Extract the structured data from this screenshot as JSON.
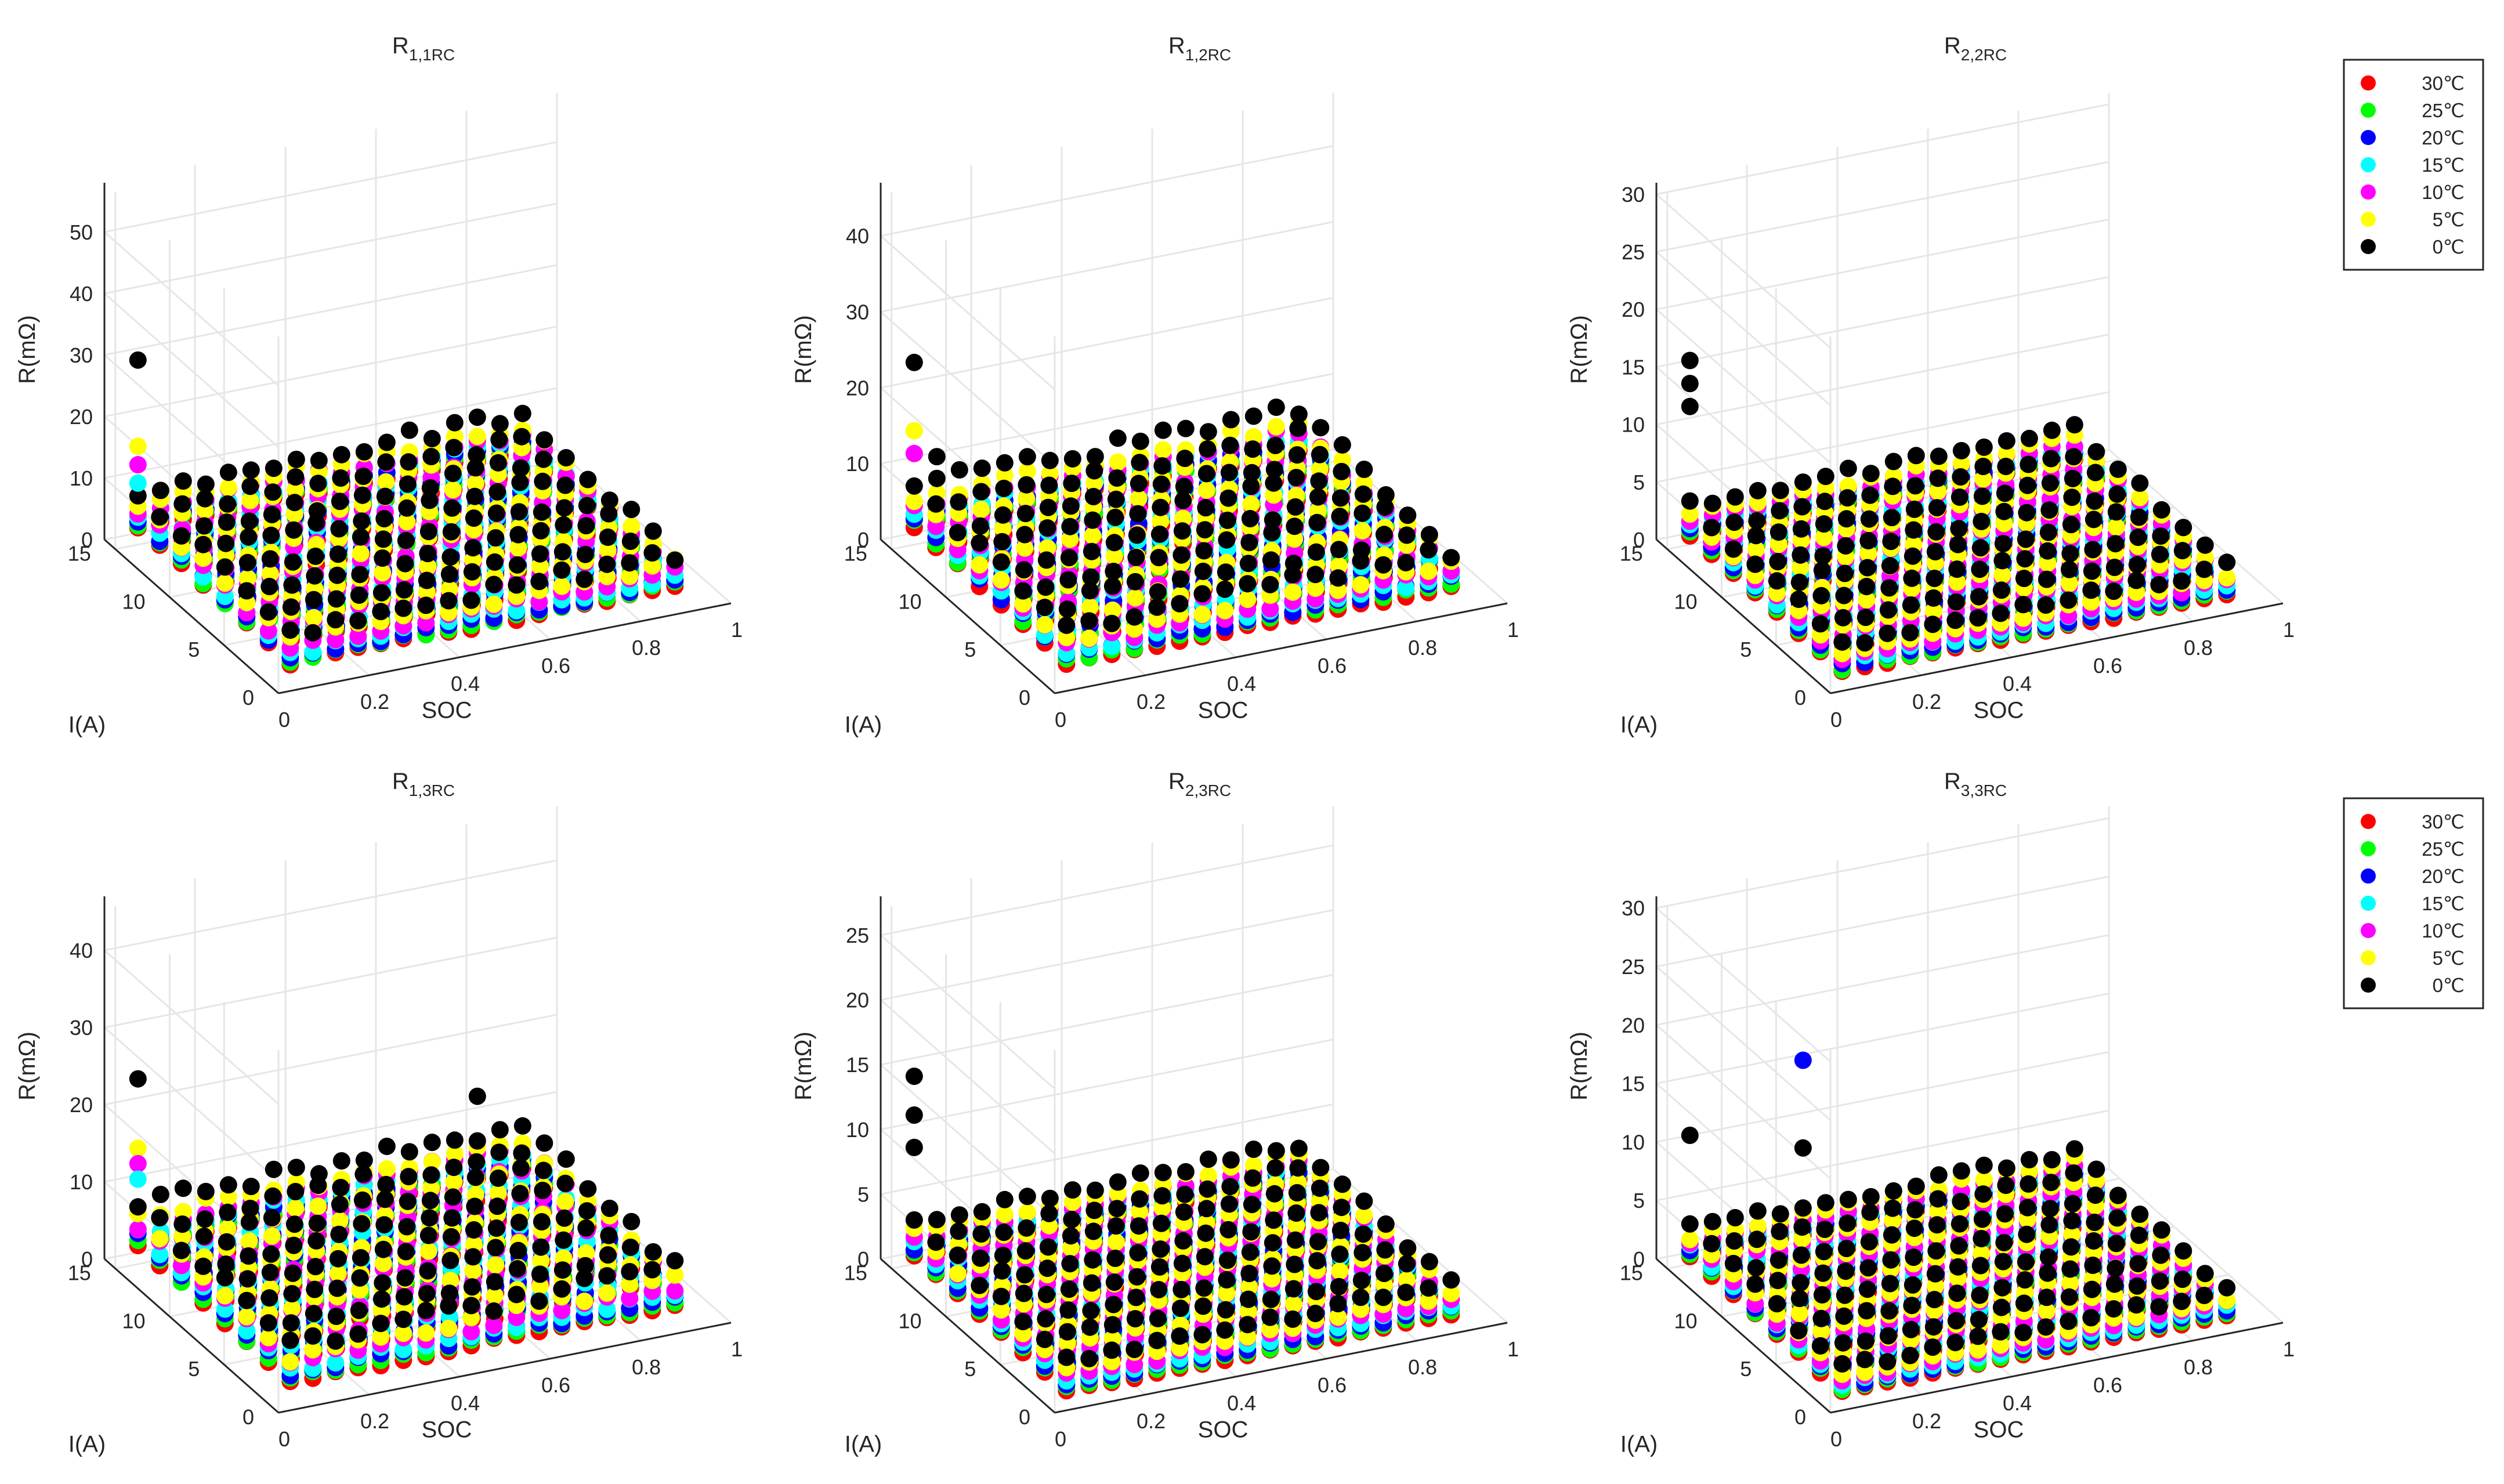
{
  "figure": {
    "temperatures": [
      {
        "label": "30℃",
        "color": "#ff0000",
        "key": "t30"
      },
      {
        "label": "25℃",
        "color": "#00ff00",
        "key": "t25"
      },
      {
        "label": "20℃",
        "color": "#0000ff",
        "key": "t20"
      },
      {
        "label": "15℃",
        "color": "#00ffff",
        "key": "t15"
      },
      {
        "label": "10℃",
        "color": "#ff00ff",
        "key": "t10"
      },
      {
        "label": "5℃",
        "color": "#ffff00",
        "key": "t5"
      },
      {
        "label": "0℃",
        "color": "#000000",
        "key": "t0"
      }
    ]
  },
  "chart_data": [
    {
      "type": "scatter",
      "title_main": "R",
      "title_sub": "1,1RC",
      "xlabel": "SOC",
      "ylabel": "I(A)",
      "zlabel": "R(mΩ)",
      "x_ticks": [
        "0",
        "0.2",
        "0.4",
        "0.6",
        "0.8",
        "1"
      ],
      "y_ticks": [
        "0",
        "5",
        "10",
        "15"
      ],
      "z_ticks": [
        "0",
        "10",
        "20",
        "30",
        "40",
        "50"
      ],
      "zlim": [
        0,
        58
      ],
      "soc": [
        0.05,
        0.1,
        0.15,
        0.2,
        0.25,
        0.3,
        0.35,
        0.4,
        0.45,
        0.5,
        0.55,
        0.6,
        0.65,
        0.7,
        0.75,
        0.8,
        0.85,
        0.9
      ],
      "current": [
        1,
        3,
        5,
        7,
        9,
        11,
        13,
        15
      ],
      "base_resistance": {
        "t30": 2.2,
        "t25": 2.6,
        "t20": 3.0,
        "t15": 3.6,
        "t10": 4.3,
        "t5": 5.2,
        "t0": 6.6
      },
      "outliers": [
        {
          "soc": 0.05,
          "current": 15,
          "value": 30,
          "temp": "0℃"
        },
        {
          "soc": 0.05,
          "current": 15,
          "value": 16,
          "temp": "5℃"
        },
        {
          "soc": 0.05,
          "current": 15,
          "value": 13,
          "temp": "10℃"
        },
        {
          "soc": 0.05,
          "current": 15,
          "value": 10,
          "temp": "15℃"
        }
      ]
    },
    {
      "type": "scatter",
      "title_main": "R",
      "title_sub": "1,2RC",
      "xlabel": "SOC",
      "ylabel": "I(A)",
      "zlabel": "R(mΩ)",
      "x_ticks": [
        "0",
        "0.2",
        "0.4",
        "0.6",
        "0.8",
        "1"
      ],
      "y_ticks": [
        "0",
        "5",
        "10",
        "15"
      ],
      "z_ticks": [
        "0",
        "10",
        "20",
        "30",
        "40"
      ],
      "zlim": [
        0,
        47
      ],
      "soc": [
        0.05,
        0.1,
        0.15,
        0.2,
        0.25,
        0.3,
        0.35,
        0.4,
        0.45,
        0.5,
        0.55,
        0.6,
        0.65,
        0.7,
        0.75,
        0.8,
        0.85,
        0.9
      ],
      "current": [
        1,
        3,
        5,
        7,
        9,
        11,
        13,
        15
      ],
      "base_resistance": {
        "t30": 1.8,
        "t25": 2.2,
        "t20": 2.6,
        "t15": 3.1,
        "t10": 3.7,
        "t5": 4.5,
        "t0": 5.8
      },
      "outliers": [
        {
          "soc": 0.05,
          "current": 15,
          "value": 24,
          "temp": "0℃"
        },
        {
          "soc": 0.05,
          "current": 15,
          "value": 15,
          "temp": "5℃"
        },
        {
          "soc": 0.05,
          "current": 15,
          "value": 12,
          "temp": "10℃"
        },
        {
          "soc": 0.1,
          "current": 15,
          "value": 11,
          "temp": "0℃"
        }
      ]
    },
    {
      "type": "scatter",
      "title_main": "R",
      "title_sub": "2,2RC",
      "xlabel": "SOC",
      "ylabel": "I(A)",
      "zlabel": "R(mΩ)",
      "x_ticks": [
        "0",
        "0.2",
        "0.4",
        "0.6",
        "0.8",
        "1"
      ],
      "y_ticks": [
        "0",
        "5",
        "10",
        "15"
      ],
      "z_ticks": [
        "0",
        "5",
        "10",
        "15",
        "20",
        "25",
        "30"
      ],
      "zlim": [
        0,
        31
      ],
      "soc": [
        0.05,
        0.1,
        0.15,
        0.2,
        0.25,
        0.3,
        0.35,
        0.4,
        0.45,
        0.5,
        0.55,
        0.6,
        0.65,
        0.7,
        0.75,
        0.8,
        0.85,
        0.9
      ],
      "current": [
        1,
        3,
        5,
        7,
        9,
        11,
        13,
        15
      ],
      "base_resistance": {
        "t30": 0.6,
        "t25": 0.8,
        "t20": 1.0,
        "t15": 1.3,
        "t10": 1.6,
        "t5": 2.0,
        "t0": 2.6
      },
      "outliers": [
        {
          "soc": 0.05,
          "current": 15,
          "value": 16,
          "temp": "0℃"
        },
        {
          "soc": 0.05,
          "current": 15,
          "value": 14,
          "temp": "0℃"
        },
        {
          "soc": 0.05,
          "current": 15,
          "value": 12,
          "temp": "0℃"
        }
      ]
    },
    {
      "type": "scatter",
      "title_main": "R",
      "title_sub": "1,3RC",
      "xlabel": "SOC",
      "ylabel": "I(A)",
      "zlabel": "R(mΩ)",
      "x_ticks": [
        "0",
        "0.2",
        "0.4",
        "0.6",
        "0.8",
        "1"
      ],
      "y_ticks": [
        "0",
        "5",
        "10",
        "15"
      ],
      "z_ticks": [
        "0",
        "10",
        "20",
        "30",
        "40"
      ],
      "zlim": [
        0,
        47
      ],
      "soc": [
        0.05,
        0.1,
        0.15,
        0.2,
        0.25,
        0.3,
        0.35,
        0.4,
        0.45,
        0.5,
        0.55,
        0.6,
        0.65,
        0.7,
        0.75,
        0.8,
        0.85,
        0.9
      ],
      "current": [
        1,
        3,
        5,
        7,
        9,
        11,
        13,
        15
      ],
      "base_resistance": {
        "t30": 1.9,
        "t25": 2.3,
        "t20": 2.7,
        "t15": 3.2,
        "t10": 3.9,
        "t5": 4.7,
        "t0": 6.0
      },
      "outliers": [
        {
          "soc": 0.05,
          "current": 15,
          "value": 24,
          "temp": "0℃"
        },
        {
          "soc": 0.05,
          "current": 15,
          "value": 15,
          "temp": "5℃"
        },
        {
          "soc": 0.05,
          "current": 15,
          "value": 13,
          "temp": "10℃"
        },
        {
          "soc": 0.05,
          "current": 15,
          "value": 11,
          "temp": "15℃"
        },
        {
          "soc": 0.8,
          "current": 15,
          "value": 13,
          "temp": "0℃"
        }
      ]
    },
    {
      "type": "scatter",
      "title_main": "R",
      "title_sub": "2,3RC",
      "xlabel": "SOC",
      "ylabel": "I(A)",
      "zlabel": "R(mΩ)",
      "x_ticks": [
        "0",
        "0.2",
        "0.4",
        "0.6",
        "0.8",
        "1"
      ],
      "y_ticks": [
        "0",
        "5",
        "10",
        "15"
      ],
      "z_ticks": [
        "0",
        "5",
        "10",
        "15",
        "20",
        "25"
      ],
      "zlim": [
        0,
        28
      ],
      "soc": [
        0.05,
        0.1,
        0.15,
        0.2,
        0.25,
        0.3,
        0.35,
        0.4,
        0.45,
        0.5,
        0.55,
        0.6,
        0.65,
        0.7,
        0.75,
        0.8,
        0.85,
        0.9
      ],
      "current": [
        1,
        3,
        5,
        7,
        9,
        11,
        13,
        15
      ],
      "base_resistance": {
        "t30": 0.5,
        "t25": 0.7,
        "t20": 0.9,
        "t15": 1.2,
        "t10": 1.5,
        "t5": 1.9,
        "t0": 2.5
      },
      "outliers": [
        {
          "soc": 0.05,
          "current": 15,
          "value": 14.5,
          "temp": "0℃"
        },
        {
          "soc": 0.05,
          "current": 15,
          "value": 11.5,
          "temp": "0℃"
        },
        {
          "soc": 0.05,
          "current": 15,
          "value": 9,
          "temp": "0℃"
        }
      ]
    },
    {
      "type": "scatter",
      "title_main": "R",
      "title_sub": "3,3RC",
      "xlabel": "SOC",
      "ylabel": "I(A)",
      "zlabel": "R(mΩ)",
      "x_ticks": [
        "0",
        "0.2",
        "0.4",
        "0.6",
        "0.8",
        "1"
      ],
      "y_ticks": [
        "0",
        "5",
        "10",
        "15"
      ],
      "z_ticks": [
        "0",
        "5",
        "10",
        "15",
        "20",
        "25",
        "30"
      ],
      "zlim": [
        0,
        31
      ],
      "soc": [
        0.05,
        0.1,
        0.15,
        0.2,
        0.25,
        0.3,
        0.35,
        0.4,
        0.45,
        0.5,
        0.55,
        0.6,
        0.65,
        0.7,
        0.75,
        0.8,
        0.85,
        0.9
      ],
      "current": [
        1,
        3,
        5,
        7,
        9,
        11,
        13,
        15
      ],
      "base_resistance": {
        "t30": 0.5,
        "t25": 0.7,
        "t20": 0.9,
        "t15": 1.1,
        "t10": 1.4,
        "t5": 1.8,
        "t0": 2.3
      },
      "outliers": [
        {
          "soc": 0.3,
          "current": 15,
          "value": 15.5,
          "temp": "20℃"
        },
        {
          "soc": 0.05,
          "current": 15,
          "value": 11,
          "temp": "0℃"
        },
        {
          "soc": 0.3,
          "current": 15,
          "value": 8,
          "temp": "0℃"
        }
      ]
    }
  ]
}
